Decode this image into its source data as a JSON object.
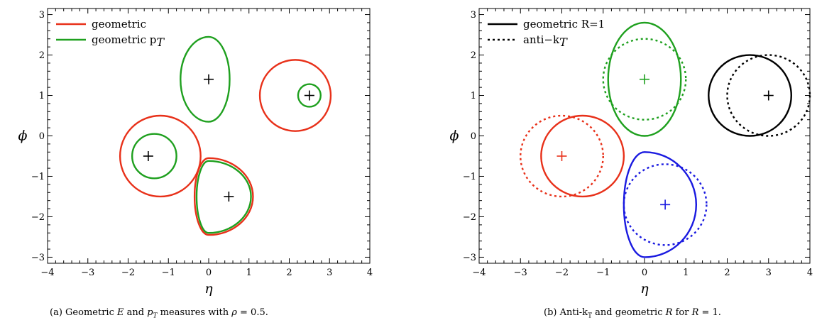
{
  "chart_data": [
    {
      "type": "contour",
      "panel": "a",
      "caption_label": "(a)",
      "caption_parts": [
        "Geometric ",
        "E",
        " and ",
        "p",
        "T",
        " measures with ",
        "ρ",
        " = 0.5."
      ],
      "xlabel": "η",
      "ylabel": "ϕ",
      "xlim": [
        -4,
        4
      ],
      "ylim": [
        -3.15,
        3.15
      ],
      "xticks": [
        "−4",
        "−3",
        "−2",
        "−1",
        "0",
        "1",
        "2",
        "3",
        "4"
      ],
      "yticks": [
        "−3",
        "−2",
        "−1",
        "0",
        "1",
        "2",
        "3"
      ],
      "legend_position": "top-left",
      "legend": [
        {
          "label": "geometric",
          "sub": "",
          "color": "#e8311a",
          "dash": "solid"
        },
        {
          "label": "geometric p",
          "sub": "T",
          "color": "#1fa01f",
          "dash": "solid"
        }
      ],
      "jet_centers": [
        {
          "eta": 0,
          "phi": 1.4,
          "color": "#000000"
        },
        {
          "eta": 2.5,
          "phi": 1.0,
          "color": "#000000"
        },
        {
          "eta": -1.5,
          "phi": -0.5,
          "color": "#000000"
        },
        {
          "eta": 0.5,
          "phi": -1.5,
          "color": "#000000"
        }
      ],
      "curves": [
        {
          "series": "geometric",
          "shape": "circle",
          "cx": 2.15,
          "cy": 1.0,
          "r": 0.88,
          "color": "#e8311a",
          "dash": "solid"
        },
        {
          "series": "geometric",
          "shape": "circle",
          "cx": -1.2,
          "cy": -0.5,
          "r": 1.0,
          "color": "#e8311a",
          "dash": "solid"
        },
        {
          "series": "geometric",
          "shape": "lens",
          "top": [
            0.0,
            -0.55
          ],
          "bottom": [
            0.0,
            -2.45
          ],
          "right": [
            1.1,
            -1.5
          ],
          "left": [
            -0.35,
            -1.5
          ],
          "color": "#e8311a",
          "dash": "solid"
        },
        {
          "series": "geometric pT",
          "shape": "lens",
          "top": [
            0.0,
            2.45
          ],
          "bottom": [
            0.0,
            0.35
          ],
          "right": [
            0.52,
            1.4
          ],
          "left": [
            -0.7,
            1.4
          ],
          "color": "#1fa01f",
          "dash": "solid"
        },
        {
          "series": "geometric pT",
          "shape": "circle",
          "cx": 2.5,
          "cy": 1.0,
          "r": 0.28,
          "color": "#1fa01f",
          "dash": "solid"
        },
        {
          "series": "geometric pT",
          "shape": "circle",
          "cx": -1.35,
          "cy": -0.5,
          "r": 0.55,
          "color": "#1fa01f",
          "dash": "solid"
        },
        {
          "series": "geometric pT",
          "shape": "lens",
          "top": [
            0.0,
            -0.62
          ],
          "bottom": [
            0.0,
            -2.4
          ],
          "right": [
            1.05,
            -1.5
          ],
          "left": [
            -0.3,
            -1.5
          ],
          "color": "#1fa01f",
          "dash": "solid"
        }
      ]
    },
    {
      "type": "contour",
      "panel": "b",
      "caption_label": "(b)",
      "caption_parts": [
        "Anti-k",
        "T",
        " and geometric ",
        "R",
        " for ",
        "R",
        " = 1."
      ],
      "xlabel": "η",
      "ylabel": "ϕ",
      "xlim": [
        -4,
        4
      ],
      "ylim": [
        -3.15,
        3.15
      ],
      "xticks": [
        "−4",
        "−3",
        "−2",
        "−1",
        "0",
        "1",
        "2",
        "3",
        "4"
      ],
      "yticks": [
        "−3",
        "−2",
        "−1",
        "0",
        "1",
        "2",
        "3"
      ],
      "legend_position": "top-left",
      "legend": [
        {
          "label": "geometric R=1",
          "sub": "",
          "color": "#000000",
          "dash": "solid"
        },
        {
          "label": "anti−k",
          "sub": "T",
          "color": "#000000",
          "dash": "dotted"
        }
      ],
      "jet_centers": [
        {
          "eta": 0,
          "phi": 1.4,
          "color": "#1fa01f"
        },
        {
          "eta": 3.0,
          "phi": 1.0,
          "color": "#000000"
        },
        {
          "eta": -2.0,
          "phi": -0.5,
          "color": "#e8311a"
        },
        {
          "eta": 0.5,
          "phi": -1.7,
          "color": "#1a1ae0"
        }
      ],
      "curves": [
        {
          "series": "geometric R=1",
          "shape": "lens",
          "top": [
            0.0,
            2.8
          ],
          "bottom": [
            0.0,
            0.0
          ],
          "right": [
            0.88,
            1.4
          ],
          "left": [
            -0.88,
            1.4
          ],
          "color": "#1fa01f",
          "dash": "solid"
        },
        {
          "series": "anti-kT",
          "shape": "circle",
          "cx": 0.0,
          "cy": 1.4,
          "r": 1.0,
          "color": "#1fa01f",
          "dash": "dotted"
        },
        {
          "series": "geometric R=1",
          "shape": "circle",
          "cx": 2.55,
          "cy": 1.0,
          "r": 1.0,
          "color": "#000000",
          "dash": "solid"
        },
        {
          "series": "anti-kT",
          "shape": "circle",
          "cx": 3.0,
          "cy": 1.0,
          "r": 1.0,
          "color": "#000000",
          "dash": "dotted"
        },
        {
          "series": "geometric R=1",
          "shape": "circle",
          "cx": -1.5,
          "cy": -0.5,
          "r": 1.0,
          "color": "#e8311a",
          "dash": "solid"
        },
        {
          "series": "anti-kT",
          "shape": "circle",
          "cx": -2.0,
          "cy": -0.5,
          "r": 1.0,
          "color": "#e8311a",
          "dash": "dotted"
        },
        {
          "series": "geometric R=1",
          "shape": "lens",
          "top": [
            0.0,
            -0.4
          ],
          "bottom": [
            0.0,
            -3.0
          ],
          "right": [
            1.25,
            -1.7
          ],
          "left": [
            -0.5,
            -1.7
          ],
          "color": "#1a1ae0",
          "dash": "solid"
        },
        {
          "series": "anti-kT",
          "shape": "circle",
          "cx": 0.5,
          "cy": -1.7,
          "r": 1.0,
          "color": "#1a1ae0",
          "dash": "dotted"
        }
      ]
    }
  ]
}
